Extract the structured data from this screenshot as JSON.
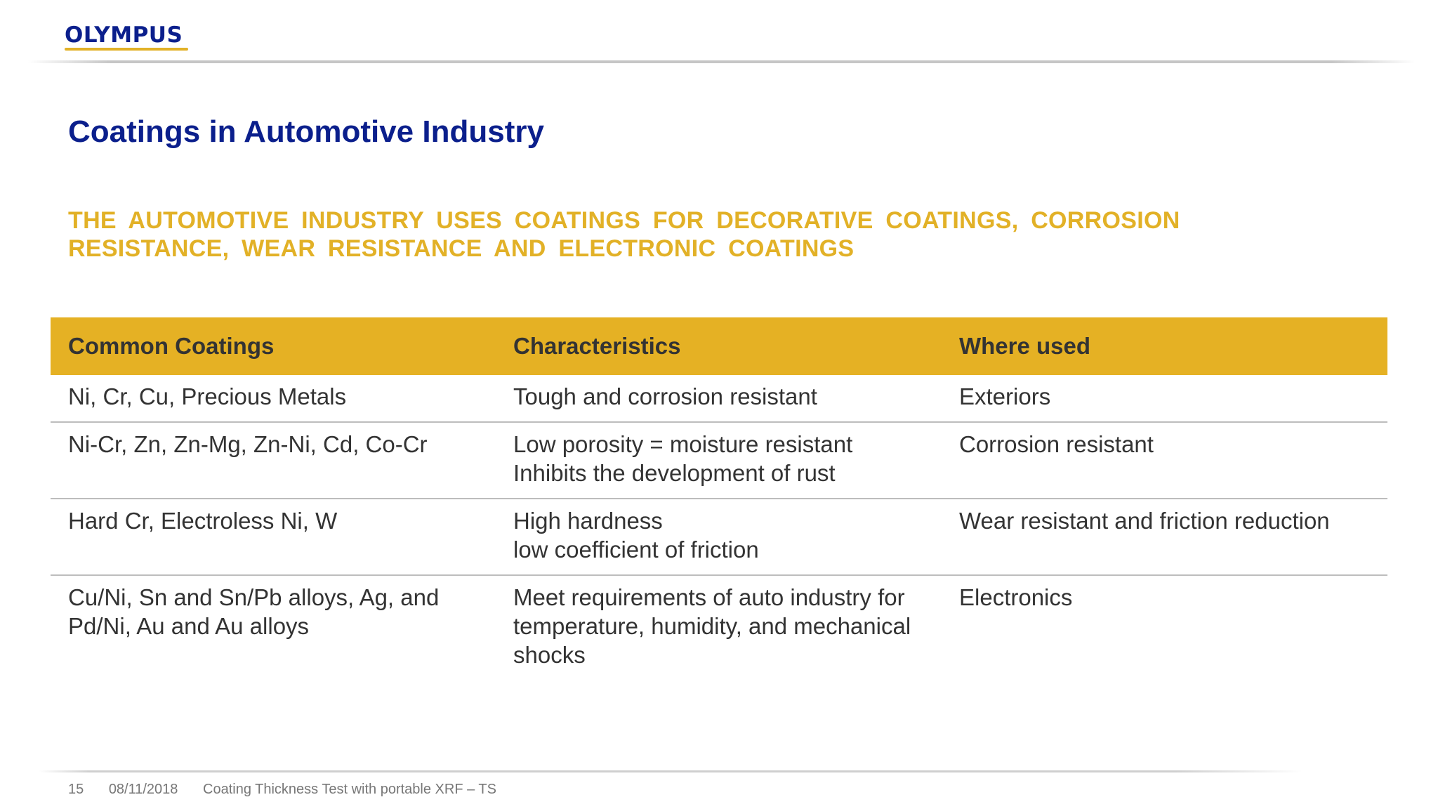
{
  "header": {
    "logo_text": "OLYMPUS",
    "title": "Coatings in Automotive Industry",
    "subtitle": "THE AUTOMOTIVE INDUSTRY USES COATINGS FOR DECORATIVE COATINGS, CORROSION RESISTANCE, WEAR RESISTANCE AND ELECTRONIC COATINGS"
  },
  "colors": {
    "brand_blue": "#0b1f8c",
    "accent_gold": "#e2b127",
    "header_row_gold": "#e5b124",
    "body_text": "#333333"
  },
  "table": {
    "columns": [
      "Common Coatings",
      "Characteristics",
      "Where used"
    ],
    "rows": [
      {
        "coatings": [
          "Ni, Cr, Cu, Precious Metals"
        ],
        "characteristics": [
          "Tough and corrosion resistant"
        ],
        "where_used": [
          "Exteriors"
        ]
      },
      {
        "coatings": [
          "Ni-Cr, Zn, Zn-Mg, Zn-Ni, Cd, Co-Cr"
        ],
        "characteristics": [
          "Low porosity = moisture resistant",
          "Inhibits the development of rust"
        ],
        "where_used": [
          "Corrosion resistant"
        ]
      },
      {
        "coatings": [
          "Hard Cr, Electroless Ni, W"
        ],
        "characteristics": [
          "High hardness",
          "low coefficient of friction"
        ],
        "where_used": [
          "Wear resistant and friction reduction"
        ]
      },
      {
        "coatings": [
          "Cu/Ni, Sn and Sn/Pb alloys, Ag, and",
          "Pd/Ni, Au and Au alloys"
        ],
        "characteristics": [
          "Meet requirements of auto industry for",
          "temperature, humidity, and mechanical",
          "shocks"
        ],
        "where_used": [
          "Electronics"
        ]
      }
    ]
  },
  "footer": {
    "page_number": "15",
    "date": "08/11/2018",
    "doc_title": "Coating Thickness Test with portable XRF – TS"
  }
}
